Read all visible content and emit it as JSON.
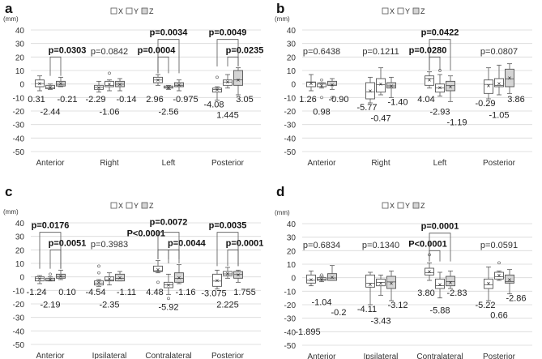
{
  "chart_data": {
    "type": "box",
    "unit_label": "(mm)",
    "ylim": [
      -50,
      40
    ],
    "yticks": [
      40,
      30,
      20,
      10,
      0,
      -10,
      -20,
      -30,
      -40,
      -50
    ],
    "grid": true,
    "legend": {
      "position": "top-center",
      "entries": [
        "X",
        "Y",
        "Z"
      ]
    },
    "series_colors": {
      "X": "#ffffff",
      "Y": "#ffffff",
      "Z": "#d4d4d4"
    },
    "box_format": "[whisker_low, q1, median, q3, whisker_high, mean, outliers]",
    "panels": [
      {
        "letter": "a",
        "groups": [
          {
            "category": "Anterior",
            "boxes": [
              [
                -5,
                -2,
                0.31,
                3,
                6,
                0.3,
                []
              ],
              [
                -4,
                -3.5,
                -2.44,
                -1,
                0,
                -2.4,
                []
              ],
              [
                -2,
                -1.5,
                -0.21,
                2,
                5,
                0.4,
                []
              ]
            ],
            "labels": [
              "0.31",
              "-2.44",
              "-0.21"
            ],
            "pvalues": [
              {
                "text": "p=0.0303",
                "from": 1,
                "to": 2,
                "sig": true
              }
            ]
          },
          {
            "category": "Right",
            "boxes": [
              [
                -6,
                -4,
                -2.29,
                -1,
                2,
                -2.5,
                []
              ],
              [
                -5,
                -2,
                -1.06,
                2,
                3,
                0,
                [
                  8
                ]
              ],
              [
                -5,
                -2,
                -0.14,
                2,
                4,
                -0.3,
                []
              ]
            ],
            "labels": [
              "-2.29",
              "-1.06",
              "-0.14"
            ],
            "pvalues": [
              {
                "text": "p=0.0842",
                "sig": false
              }
            ]
          },
          {
            "category": "Left",
            "boxes": [
              [
                -1,
                1,
                2.96,
                5,
                7,
                3,
                []
              ],
              [
                -4,
                -3,
                -2.56,
                -1.5,
                -1,
                -2.5,
                []
              ],
              [
                -5,
                -2,
                -0.975,
                1,
                3,
                -0.5,
                []
              ]
            ],
            "labels": [
              "2.96",
              "-2.56",
              "-0.975"
            ],
            "pvalues": [
              {
                "text": "p=0.0004",
                "from": 0,
                "to": 1,
                "sig": true
              },
              {
                "text": "p=0.0034",
                "from": 0,
                "to": 2,
                "sig": true
              }
            ]
          },
          {
            "category": "Posterior",
            "boxes": [
              [
                -12,
                -6,
                -4.08,
                -3,
                -2,
                -4,
                [
                  5
                ]
              ],
              [
                -3,
                -1,
                1.445,
                3,
                7,
                1.5,
                []
              ],
              [
                -8,
                -1,
                3.05,
                10,
                12,
                3,
                []
              ]
            ],
            "labels": [
              "-4.08",
              "1.445",
              "3.05"
            ],
            "pvalues": [
              {
                "text": "p=0.0235",
                "from": 1,
                "to": 2,
                "sig": true
              },
              {
                "text": "p=0.0049",
                "from": 0,
                "to": 2,
                "sig": true
              }
            ]
          }
        ]
      },
      {
        "letter": "b",
        "groups": [
          {
            "category": "Anterior",
            "boxes": [
              [
                -5,
                -2,
                1.26,
                1.5,
                7,
                0.3,
                []
              ],
              [
                -3,
                -2,
                0.98,
                0,
                1,
                -1,
                [
                  3,
                  -10
                ]
              ],
              [
                -4,
                -1,
                -0.9,
                2,
                4,
                -0.5,
                [
                  -10
                ]
              ]
            ],
            "labels": [
              "1.26",
              "0.98",
              "-0.90"
            ],
            "pvalues": [
              {
                "text": "p=0.6438",
                "sig": false
              }
            ]
          },
          {
            "category": "Right",
            "boxes": [
              [
                -14,
                -11,
                -5.77,
                1,
                5,
                -5,
                []
              ],
              [
                -8,
                -6,
                -0.47,
                4,
                12,
                0,
                []
              ],
              [
                -10,
                -3,
                -1.4,
                1,
                5,
                -1.5,
                []
              ]
            ],
            "labels": [
              "-5.77",
              "-0.47",
              "-1.40"
            ],
            "pvalues": [
              {
                "text": "p=0.1211",
                "sig": false
              }
            ]
          },
          {
            "category": "Left",
            "boxes": [
              [
                -3,
                -1,
                4.04,
                6,
                9,
                3,
                []
              ],
              [
                -9,
                -6,
                -2.93,
                0,
                7,
                -2.5,
                [
                  10
                ]
              ],
              [
                -13,
                -5,
                -1.19,
                2,
                6,
                -2,
                []
              ]
            ],
            "labels": [
              "4.04",
              "-2.93",
              "-1.19"
            ],
            "pvalues": [
              {
                "text": "p=0.0280",
                "from": 0,
                "to": 1,
                "sig": true
              },
              {
                "text": "p=0.0422",
                "from": 0,
                "to": 2,
                "sig": true
              }
            ]
          },
          {
            "category": "Posterior",
            "boxes": [
              [
                -11,
                -7,
                -0.29,
                3,
                12,
                -1,
                []
              ],
              [
                -8,
                -2,
                -1.05,
                4,
                14,
                0.5,
                []
              ],
              [
                -7,
                -2,
                3.86,
                11,
                15,
                4.5,
                []
              ]
            ],
            "labels": [
              "-0.29",
              "-1.05",
              "3.86"
            ],
            "pvalues": [
              {
                "text": "p=0.0807",
                "sig": false
              }
            ]
          }
        ]
      },
      {
        "letter": "c",
        "groups": [
          {
            "category": "Anterior",
            "boxes": [
              [
                -5,
                -3,
                -1.24,
                0,
                1,
                -1.5,
                []
              ],
              [
                -3,
                -3,
                -2.19,
                -1,
                0,
                -2,
                [
                  2
                ]
              ],
              [
                -2,
                -1,
                0.1,
                2,
                5,
                0.8,
                []
              ]
            ],
            "labels": [
              "-1.24",
              "-2.19",
              "0.10"
            ],
            "pvalues": [
              {
                "text": "p=0.0051",
                "from": 1,
                "to": 2,
                "sig": true
              },
              {
                "text": "p=0.0176",
                "from": 0,
                "to": 2,
                "sig": true
              }
            ]
          },
          {
            "category": "Ipsilateral",
            "boxes": [
              [
                -7,
                -6,
                -4.54,
                -3,
                -2,
                -4,
                [
                  8,
                  3
                ]
              ],
              [
                -6,
                -3,
                -2.35,
                0,
                3,
                -1.5,
                []
              ],
              [
                -3,
                -3,
                -1.11,
                2,
                4,
                -0.5,
                []
              ]
            ],
            "labels": [
              "-4.54",
              "-2.35",
              "-1.11"
            ],
            "pvalues": [
              {
                "text": "p=0.3983",
                "sig": false
              }
            ]
          },
          {
            "category": "Contralateral",
            "boxes": [
              [
                3,
                4,
                4.48,
                8,
                12,
                5.5,
                [
                  -4
                ]
              ],
              [
                -13,
                -8,
                -5.92,
                -4,
                2,
                -6,
                [
                  -16
                ]
              ],
              [
                -5,
                -4,
                -1.16,
                3,
                9,
                -0.5,
                []
              ]
            ],
            "labels": [
              "4.48",
              "-5.92",
              "-1.16"
            ],
            "pvalues": [
              {
                "text": "P<0.0001",
                "from": 0,
                "to": 1,
                "sig": true
              },
              {
                "text": "p=0.0044",
                "from": 1,
                "to": 2,
                "sig": true
              },
              {
                "text": "p=0.0072",
                "from": 0,
                "to": 2,
                "sig": true
              }
            ]
          },
          {
            "category": "Posterior",
            "boxes": [
              [
                -9,
                -7,
                -3.075,
                2,
                5,
                -2.5,
                []
              ],
              [
                -1,
                1,
                2.225,
                4,
                7,
                2.5,
                []
              ],
              [
                -4,
                -1,
                1.755,
                4,
                5,
                1.5,
                []
              ]
            ],
            "labels": [
              "-3.075",
              "2.225",
              "1.755"
            ],
            "pvalues": [
              {
                "text": "p=0.0001",
                "from": 1,
                "to": 2,
                "sig": true
              },
              {
                "text": "p=0.0035",
                "from": 0,
                "to": 2,
                "sig": true
              }
            ]
          }
        ]
      },
      {
        "letter": "d",
        "groups": [
          {
            "category": "Anterior",
            "boxes": [
              [
                -6,
                -4,
                -1.895,
                2,
                5,
                -1.5,
                []
              ],
              [
                -3,
                -2,
                -1.04,
                0,
                1,
                -1,
                [
                  2
                ]
              ],
              [
                -2,
                -2,
                -0.2,
                3,
                9,
                0.5,
                []
              ]
            ],
            "labels": [
              "-1.895",
              "-1.04",
              "-0.2"
            ],
            "pvalues": [
              {
                "text": "p=0.6834",
                "sig": false
              }
            ]
          },
          {
            "category": "Ipsilateral",
            "boxes": [
              [
                -20,
                -7,
                -4.11,
                2,
                4,
                -5,
                []
              ],
              [
                -13,
                -6,
                -3.43,
                -1,
                2,
                -4,
                []
              ],
              [
                -17,
                -8,
                -3.12,
                1,
                5,
                -4,
                []
              ]
            ],
            "labels": [
              "-4.11",
              "-3.43",
              "-3.12"
            ],
            "pvalues": [
              {
                "text": "p=0.1340",
                "sig": false
              }
            ]
          },
          {
            "category": "Contralateral",
            "boxes": [
              [
                -2,
                2,
                3.8,
                7,
                11,
                4.5,
                [
                  17
                ]
              ],
              [
                -15,
                -8,
                -5.88,
                -1,
                4,
                -5,
                []
              ],
              [
                -8,
                -6,
                -2.83,
                1,
                5,
                -3.5,
                []
              ]
            ],
            "labels": [
              "3.80",
              "-5.88",
              "-2.83"
            ],
            "pvalues": [
              {
                "text": "P<0.0001",
                "from": 0,
                "to": 1,
                "sig": true
              },
              {
                "text": "p=0.0001",
                "from": 0,
                "to": 2,
                "sig": true
              }
            ]
          },
          {
            "category": "Posterior",
            "boxes": [
              [
                -17,
                -8,
                -5.22,
                -1,
                8,
                -4,
                []
              ],
              [
                -2,
                -1,
                0.66,
                4,
                5,
                2,
                [
                  11
                ]
              ],
              [
                -12,
                -4,
                -2.86,
                2,
                6,
                -1.5,
                []
              ]
            ],
            "labels": [
              "-5.22",
              "0.66",
              "-2.86"
            ],
            "pvalues": [
              {
                "text": "p=0.0591",
                "sig": false
              }
            ]
          }
        ]
      }
    ]
  }
}
